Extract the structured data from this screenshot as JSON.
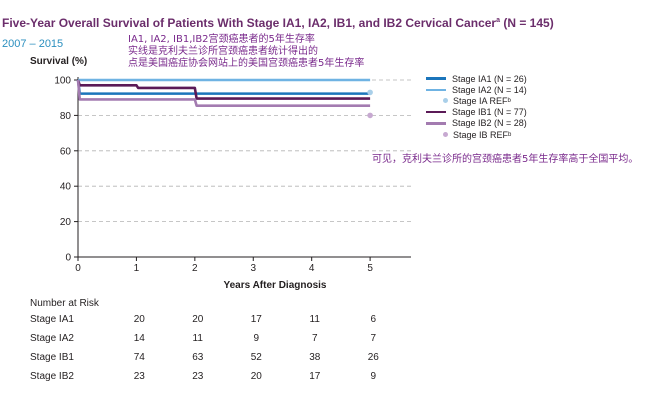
{
  "header": {
    "title_main": "Five-Year Overall Survival of Patients With Stage IA1, IA2, IB1, and IB2 Cervical Cancer",
    "title_sup": "a",
    "title_n": " (N = 145)",
    "period": "2007 – 2015"
  },
  "annotations": {
    "top": [
      "IA1, IA2, IB1,IB2宫颈癌患者的5年生存率",
      "实线是克利夫兰诊所宫颈癌患者统计得出的",
      "点是美国癌症协会网站上的美国宫颈癌患者5年生存率"
    ],
    "right": "可见，克利夫兰诊所的宫颈癌患者5年生存率高于全国平均。"
  },
  "chart_data": {
    "type": "line",
    "title": "Five-Year Overall Survival of Patients With Stage IA1, IA2, IB1, and IB2 Cervical Cancer (N = 145)",
    "subtitle": "2007 – 2015",
    "xlabel": "Years After Diagnosis",
    "ylabel": "Survival (%)",
    "xlim": [
      0,
      5.7
    ],
    "ylim": [
      0,
      100
    ],
    "xticks": [
      0,
      1,
      2,
      3,
      4,
      5
    ],
    "yticks": [
      0,
      20,
      40,
      60,
      80,
      100
    ],
    "grid": "horizontal dashed",
    "legend_position": "right",
    "series": [
      {
        "name": "Stage IA1 (N = 26)",
        "color": "#1b75bb",
        "step": true,
        "x": [
          0,
          1,
          2,
          3,
          4,
          5
        ],
        "y": [
          100,
          92.3,
          92.3,
          92.3,
          92.3,
          92.3
        ]
      },
      {
        "name": "Stage IA2 (N = 14)",
        "color": "#6fb3e3",
        "step": true,
        "x": [
          0,
          1,
          2,
          3,
          4,
          5
        ],
        "y": [
          100,
          100,
          100,
          100,
          100,
          100
        ]
      },
      {
        "name": "Stage IB1 (N = 77)",
        "color": "#5b1a57",
        "step": true,
        "x": [
          0,
          1,
          2,
          3,
          4,
          5
        ],
        "y": [
          100,
          97,
          95.5,
          89.5,
          89.5,
          89.5
        ]
      },
      {
        "name": "Stage IB2 (N = 28)",
        "color": "#a37bb0",
        "step": true,
        "x": [
          0,
          1,
          2,
          3,
          4,
          5
        ],
        "y": [
          100,
          89,
          89,
          85.5,
          85.5,
          85.5
        ]
      }
    ],
    "reference_points": [
      {
        "name": "Stage IA REF",
        "sup": "b",
        "color": "#a9cfe9",
        "x": 5,
        "y": 93
      },
      {
        "name": "Stage IB REF",
        "sup": "b",
        "color": "#c7a9d1",
        "x": 5,
        "y": 80
      }
    ],
    "number_at_risk": {
      "title": "Number at Risk",
      "rows": [
        {
          "label": "Stage IA1",
          "values": [
            20,
            20,
            17,
            11,
            6
          ]
        },
        {
          "label": "Stage IA2",
          "values": [
            14,
            11,
            9,
            7,
            7
          ]
        },
        {
          "label": "Stage IB1",
          "values": [
            74,
            63,
            52,
            38,
            26
          ]
        },
        {
          "label": "Stage IB2",
          "values": [
            23,
            23,
            20,
            17,
            9
          ]
        }
      ]
    }
  },
  "legend": [
    {
      "kind": "line",
      "label": "Stage IA1 (N = 26)",
      "color": "#1b75bb",
      "sup": ""
    },
    {
      "kind": "line",
      "label": "Stage IA2 (N = 14)",
      "color": "#6fb3e3",
      "sup": ""
    },
    {
      "kind": "dot",
      "label": "Stage IA REF",
      "color": "#a9cfe9",
      "sup": "b"
    },
    {
      "kind": "line",
      "label": "Stage IB1 (N = 77)",
      "color": "#5b1a57",
      "sup": ""
    },
    {
      "kind": "line",
      "label": "Stage IB2 (N = 28)",
      "color": "#a37bb0",
      "sup": ""
    },
    {
      "kind": "dot",
      "label": "Stage IB REF",
      "color": "#c7a9d1",
      "sup": "b"
    }
  ]
}
